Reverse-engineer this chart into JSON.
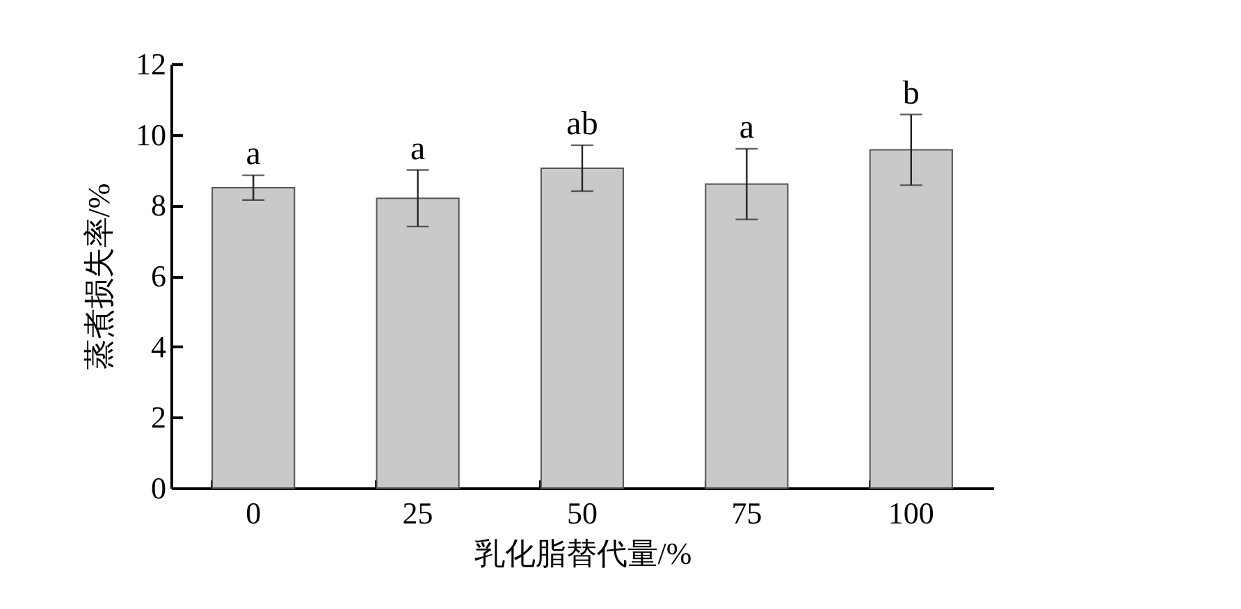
{
  "chart_data": {
    "type": "bar",
    "xlabel": "乳化脂替代量/%",
    "ylabel": "蒸煮损失率/%",
    "categories": [
      "0",
      "25",
      "50",
      "75",
      "100"
    ],
    "values": [
      8.5,
      8.2,
      9.05,
      8.6,
      9.57
    ],
    "errors": [
      0.35,
      0.8,
      0.65,
      1.0,
      1.0
    ],
    "color": "#c8c9cb",
    "ylim": [
      0,
      12
    ],
    "yticks": [
      0,
      2,
      4,
      6,
      8,
      10,
      12
    ],
    "grid": false,
    "annotations": [
      {
        "text": "a",
        "x": "0",
        "y": 8.85
      },
      {
        "text": "a",
        "x": "25",
        "y": 9.0
      },
      {
        "text": "ab",
        "x": "50",
        "y": 9.7
      },
      {
        "text": "a",
        "x": "75",
        "y": 9.6
      },
      {
        "text": "b",
        "x": "100",
        "y": 10.57
      }
    ]
  }
}
